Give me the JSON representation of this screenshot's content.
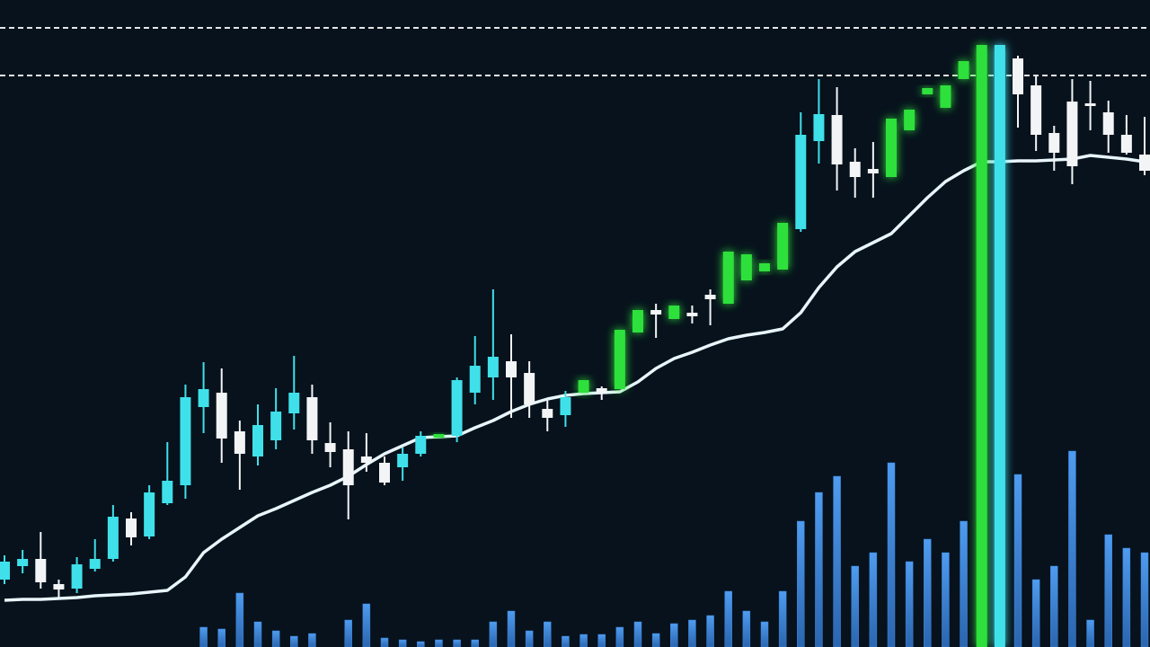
{
  "chart_data": {
    "type": "candlestick",
    "open": [
      75,
      98,
      98,
      70,
      65,
      87,
      98,
      143,
      123,
      160,
      180,
      267,
      283,
      240,
      212,
      230,
      260,
      278,
      227,
      220,
      212,
      205,
      200,
      215,
      233,
      235,
      283,
      300,
      318,
      305,
      265,
      258,
      283,
      288,
      287,
      350,
      375,
      365,
      372,
      392,
      382,
      408,
      418,
      420,
      465,
      563,
      592,
      540,
      532,
      523,
      575,
      615,
      600,
      632,
      0,
      670,
      655,
      625,
      572,
      607,
      605,
      595,
      570,
      548
    ],
    "close": [
      95,
      90,
      72,
      64,
      92,
      98,
      145,
      122,
      172,
      185,
      278,
      287,
      232,
      215,
      247,
      262,
      283,
      230,
      217,
      180,
      205,
      183,
      215,
      235,
      237,
      297,
      313,
      323,
      300,
      270,
      255,
      278,
      297,
      283,
      353,
      375,
      370,
      380,
      368,
      387,
      440,
      437,
      427,
      472,
      570,
      593,
      537,
      523,
      527,
      588,
      598,
      622,
      625,
      652,
      670,
      0,
      615,
      570,
      550,
      535,
      602,
      570,
      550,
      530
    ],
    "high": [
      102,
      108,
      128,
      75,
      100,
      120,
      158,
      150,
      180,
      228,
      292,
      317,
      310,
      252,
      270,
      288,
      324,
      292,
      250,
      240,
      238,
      212,
      222,
      240,
      244,
      300,
      346,
      398,
      348,
      318,
      275,
      285,
      315,
      290,
      355,
      383,
      382,
      415,
      380,
      398,
      452,
      440,
      430,
      475,
      595,
      632,
      623,
      555,
      562,
      625,
      605,
      650,
      640,
      672,
      720,
      690,
      658,
      635,
      580,
      632,
      630,
      608,
      592,
      590
    ],
    "low": [
      70,
      82,
      65,
      55,
      60,
      84,
      95,
      113,
      120,
      158,
      165,
      238,
      205,
      175,
      202,
      220,
      242,
      215,
      200,
      142,
      195,
      180,
      185,
      212,
      212,
      228,
      270,
      275,
      255,
      255,
      240,
      245,
      273,
      275,
      285,
      346,
      344,
      363,
      360,
      358,
      380,
      398,
      412,
      418,
      462,
      538,
      508,
      500,
      500,
      520,
      550,
      610,
      573,
      590,
      0,
      0,
      578,
      552,
      530,
      515,
      575,
      550,
      548,
      525
    ],
    "colors": [
      "#3fe0ea",
      "#3fe0ea",
      "#f2f4f6",
      "#f2f4f6",
      "#3fe0ea",
      "#3fe0ea",
      "#3fe0ea",
      "#f2f4f6",
      "#3fe0ea",
      "#3fe0ea",
      "#3fe0ea",
      "#3fe0ea",
      "#f2f4f6",
      "#f2f4f6",
      "#3fe0ea",
      "#3fe0ea",
      "#3fe0ea",
      "#f2f4f6",
      "#f2f4f6",
      "#f2f4f6",
      "#f2f4f6",
      "#f2f4f6",
      "#3fe0ea",
      "#3fe0ea",
      "#2fe03a",
      "#3fe0ea",
      "#3fe0ea",
      "#3fe0ea",
      "#f2f4f6",
      "#f2f4f6",
      "#f2f4f6",
      "#3fe0ea",
      "#2fe03a",
      "#f2f4f6",
      "#2fe03a",
      "#2fe03a",
      "#f2f4f6",
      "#2fe03a",
      "#f2f4f6",
      "#f2f4f6",
      "#2fe03a",
      "#2fe03a",
      "#2fe03a",
      "#2fe03a",
      "#3fe0ea",
      "#3fe0ea",
      "#f2f4f6",
      "#f2f4f6",
      "#f2f4f6",
      "#2fe03a",
      "#2fe03a",
      "#2fe03a",
      "#2fe03a",
      "#2fe03a",
      "#2fe03a",
      "#3fe0ea",
      "#f2f4f6",
      "#f2f4f6",
      "#f2f4f6",
      "#f2f4f6",
      "#f2f4f6",
      "#f2f4f6",
      "#f2f4f6",
      "#f2f4f6"
    ],
    "moving_average": [
      52,
      53,
      53,
      54,
      55,
      57,
      58,
      59,
      61,
      63,
      78,
      105,
      120,
      133,
      146,
      154,
      163,
      172,
      180,
      190,
      203,
      215,
      224,
      233,
      234,
      235,
      244,
      252,
      262,
      270,
      276,
      280,
      282,
      283,
      284,
      295,
      310,
      321,
      328,
      336,
      343,
      347,
      350,
      354,
      372,
      400,
      423,
      440,
      450,
      460,
      480,
      500,
      518,
      530,
      540,
      540,
      541,
      541,
      542,
      543,
      547,
      545,
      543,
      540
    ],
    "moving_average_color": "#e8f6fb",
    "volume": [
      null,
      null,
      null,
      null,
      null,
      null,
      null,
      null,
      null,
      null,
      null,
      22,
      20,
      60,
      28,
      18,
      12,
      15,
      null,
      30,
      48,
      10,
      8,
      6,
      8,
      8,
      8,
      28,
      40,
      18,
      28,
      12,
      14,
      14,
      22,
      28,
      15,
      26,
      30,
      35,
      62,
      40,
      28,
      62,
      140,
      172,
      190,
      90,
      105,
      205,
      95,
      120,
      105,
      140,
      140,
      150,
      192,
      75,
      90,
      218,
      30,
      125,
      110,
      105
    ],
    "volume_color": "#3d86dc",
    "levels": [
      689,
      636
    ],
    "level_color": "#e6e6e6",
    "ylim": [
      0,
      720
    ],
    "y2lim": [
      0,
      720
    ],
    "background": "#07121c"
  }
}
